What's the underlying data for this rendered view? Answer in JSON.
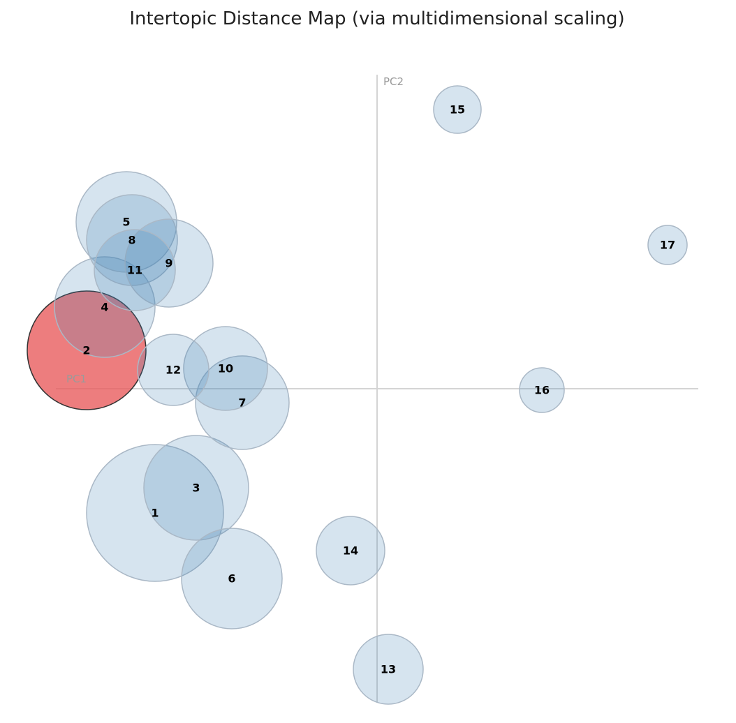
{
  "title": "Intertopic Distance Map (via multidimensional scaling)",
  "colors": {
    "bubble_fill": "#4682b4",
    "bubble_stroke": "#aab8c6",
    "selected_fill": "#e8585a",
    "selected_stroke": "#333333",
    "axis": "#d4d4d4"
  },
  "chart_data": {
    "type": "scatter",
    "title": "Intertopic Distance Map (via multidimensional scaling)",
    "xlabel": "PC1",
    "ylabel": "PC2",
    "xlim": [
      -0.46,
      0.46
    ],
    "ylim": [
      -0.45,
      0.45
    ],
    "grid": false,
    "selected_topic": "2",
    "points": [
      {
        "label": "1",
        "x": -0.318,
        "y": -0.178,
        "size": 0.098
      },
      {
        "label": "2",
        "x": -0.416,
        "y": 0.055,
        "size": 0.085,
        "selected": true
      },
      {
        "label": "3",
        "x": -0.259,
        "y": -0.142,
        "size": 0.075
      },
      {
        "label": "4",
        "x": -0.39,
        "y": 0.117,
        "size": 0.072
      },
      {
        "label": "5",
        "x": -0.359,
        "y": 0.239,
        "size": 0.072
      },
      {
        "label": "6",
        "x": -0.208,
        "y": -0.272,
        "size": 0.072
      },
      {
        "label": "7",
        "x": -0.193,
        "y": -0.02,
        "size": 0.067
      },
      {
        "label": "8",
        "x": -0.351,
        "y": 0.213,
        "size": 0.065
      },
      {
        "label": "9",
        "x": -0.298,
        "y": 0.18,
        "size": 0.063
      },
      {
        "label": "10",
        "x": -0.217,
        "y": 0.029,
        "size": 0.06
      },
      {
        "label": "11",
        "x": -0.347,
        "y": 0.17,
        "size": 0.058
      },
      {
        "label": "12",
        "x": -0.292,
        "y": 0.027,
        "size": 0.051
      },
      {
        "label": "13",
        "x": 0.016,
        "y": -0.402,
        "size": 0.05
      },
      {
        "label": "14",
        "x": -0.038,
        "y": -0.232,
        "size": 0.049
      },
      {
        "label": "15",
        "x": 0.115,
        "y": 0.4,
        "size": 0.034
      },
      {
        "label": "16",
        "x": 0.236,
        "y": -0.002,
        "size": 0.032
      },
      {
        "label": "17",
        "x": 0.416,
        "y": 0.206,
        "size": 0.028
      }
    ]
  }
}
